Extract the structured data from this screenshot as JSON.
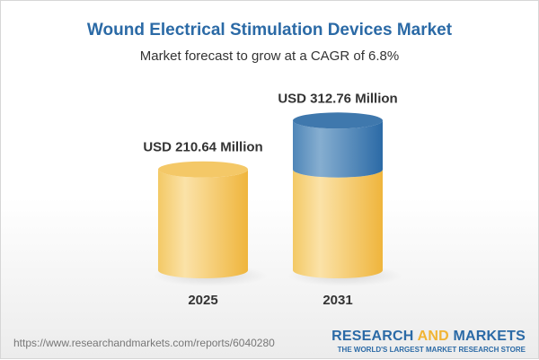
{
  "header": {
    "title": "Wound Electrical Stimulation Devices Market",
    "subtitle": "Market forecast to grow at a CAGR of 6.8%"
  },
  "chart_data": {
    "type": "bar",
    "style": "3d-cylinder",
    "categories": [
      "2025",
      "2031"
    ],
    "values": [
      210.64,
      312.76
    ],
    "data_labels": [
      "USD 210.64 Million",
      "USD 312.76 Million"
    ],
    "colors": {
      "base": "#f2c25a",
      "growth": "#3f7bb0"
    },
    "title": "Wound Electrical Stimulation Devices Market",
    "grid": false
  },
  "footer": {
    "url": "https://www.researchandmarkets.com/reports/6040280",
    "logo_part1": "RESEARCH ",
    "logo_part2": "AND",
    "logo_part3": " MARKETS",
    "tagline": "THE WORLD'S LARGEST MARKET RESEARCH STORE"
  }
}
